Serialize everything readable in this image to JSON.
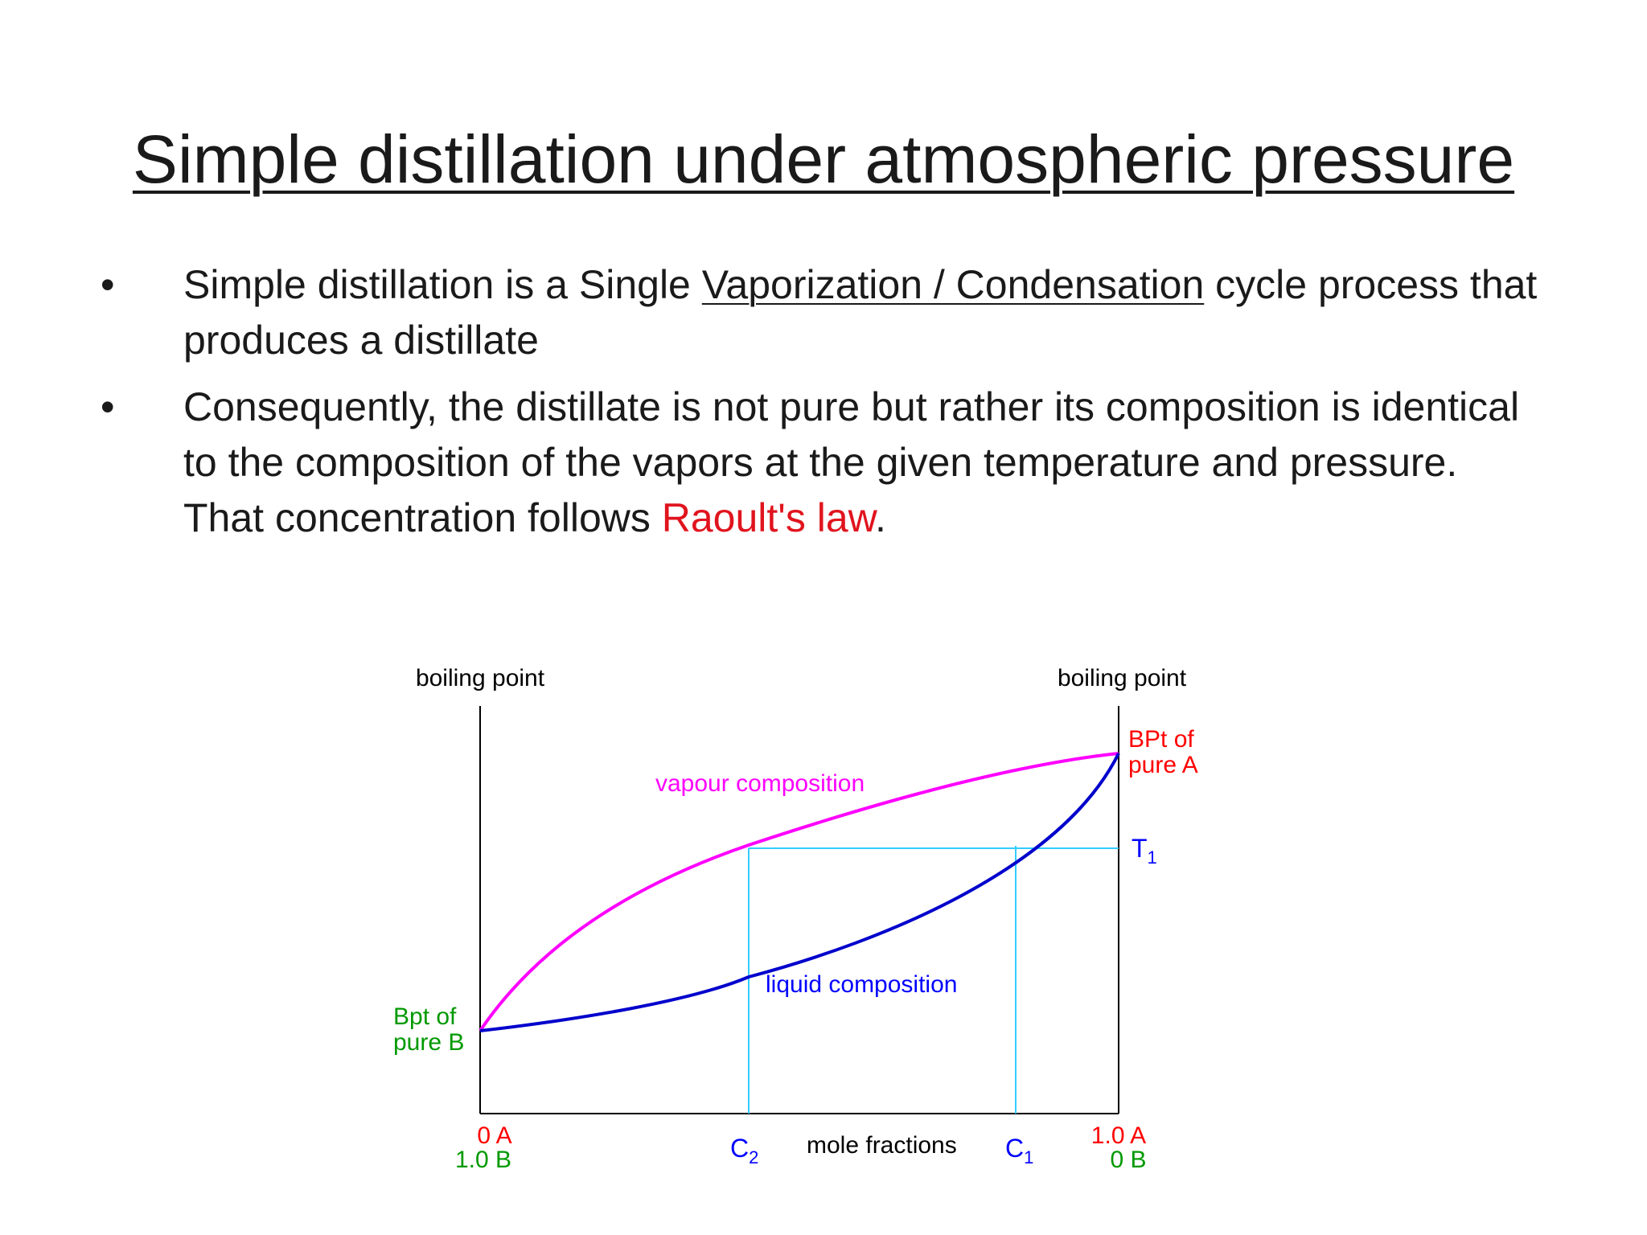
{
  "slide": {
    "title": "Simple distillation under atmospheric pressure",
    "bullet1": {
      "before": "Simple distillation is a Single ",
      "underlined": "Vaporization / Condensation",
      "after": " cycle process that produces a distillate"
    },
    "bullet2": {
      "text": "Consequently, the distillate is not pure but rather its composition is identical to the composition of the vapors at the given temperature and pressure. That concentration follows ",
      "link": "Raoult's law",
      "end": "."
    },
    "bullet_marker": "•"
  },
  "diagram": {
    "left_axis_label": "boiling point",
    "right_axis_label": "boiling point",
    "vapour_label": "vapour composition",
    "liquid_label": "liquid composition",
    "pure_a_line1": "BPt of",
    "pure_a_line2": "pure A",
    "pure_b_line1": "Bpt of",
    "pure_b_line2": "pure B",
    "t1": "T",
    "t1_sub": "1",
    "c1": "C",
    "c1_sub": "1",
    "c2": "C",
    "c2_sub": "2",
    "x_label": "mole fractions",
    "left_bottom_a": "0 A",
    "left_bottom_b": "1.0 B",
    "right_bottom_a": "1.0 A",
    "right_bottom_b": "0 B",
    "colors": {
      "vapour": "#ff00ff",
      "liquid": "#0000cc",
      "tie_lines": "#33ccff",
      "red": "#ff0000",
      "green": "#009900",
      "blue": "#0000ff"
    }
  }
}
